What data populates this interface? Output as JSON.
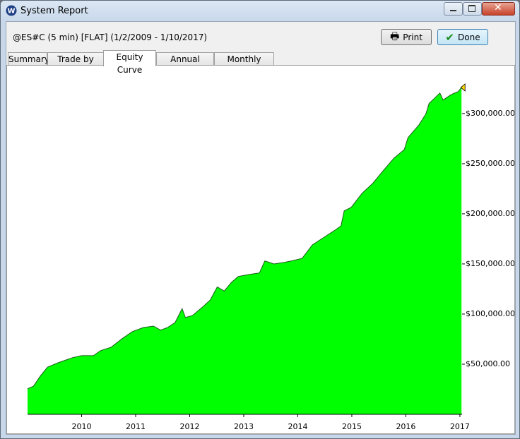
{
  "window": {
    "title": "System Report"
  },
  "report": {
    "description": "@ES#C (5 min) [FLAT]  (1/2/2009 - 1/10/2017)"
  },
  "buttons": [
    "Print",
    "Done"
  ],
  "tabs": [
    "Summary",
    "Trade by trade",
    "Equity Curve",
    "Annual Results",
    "Monthly Results"
  ],
  "chart_data": {
    "type": "area",
    "color": "#00ff00",
    "line_color": "#1a5c1a",
    "x": [
      2009.0,
      2009.11,
      2009.24,
      2009.37,
      2009.57,
      2009.83,
      2010.0,
      2010.22,
      2010.35,
      2010.55,
      2010.75,
      2010.94,
      2011.14,
      2011.33,
      2011.46,
      2011.59,
      2011.73,
      2011.86,
      2011.92,
      2012.05,
      2012.25,
      2012.38,
      2012.51,
      2012.64,
      2012.77,
      2012.9,
      2013.1,
      2013.29,
      2013.39,
      2013.56,
      2013.75,
      2013.88,
      2014.08,
      2014.27,
      2014.47,
      2014.67,
      2014.8,
      2014.86,
      2014.99,
      2015.19,
      2015.39,
      2015.58,
      2015.78,
      2015.97,
      2016.04,
      2016.24,
      2016.37,
      2016.43,
      2016.63,
      2016.69,
      2016.84,
      2016.97,
      2017.03
    ],
    "values": [
      25500,
      28000,
      38500,
      47000,
      51500,
      56500,
      58500,
      58500,
      63500,
      67000,
      75500,
      82500,
      86500,
      88000,
      84000,
      86500,
      91500,
      105500,
      96500,
      98500,
      107500,
      114000,
      127000,
      123000,
      131500,
      137500,
      139500,
      141000,
      153000,
      150000,
      151500,
      153000,
      155500,
      169000,
      176000,
      183000,
      188000,
      203000,
      206500,
      220500,
      230500,
      243000,
      255500,
      264000,
      276000,
      288500,
      299500,
      310000,
      320500,
      313500,
      319000,
      322000,
      326000
    ],
    "xlim": [
      2009.0,
      2017.04
    ],
    "xticks": [
      2010,
      2011,
      2012,
      2013,
      2014,
      2015,
      2016,
      2017
    ],
    "ylim": [
      0,
      345000
    ],
    "yticks": [
      {
        "value": 50000,
        "label": "$50,000.00"
      },
      {
        "value": 100000,
        "label": "$100,000.00"
      },
      {
        "value": 150000,
        "label": "$150,000.00"
      },
      {
        "value": 200000,
        "label": "$200,000.00"
      },
      {
        "value": 250000,
        "label": "$250,000.00"
      },
      {
        "value": 300000,
        "label": "$300,000.00"
      }
    ]
  }
}
